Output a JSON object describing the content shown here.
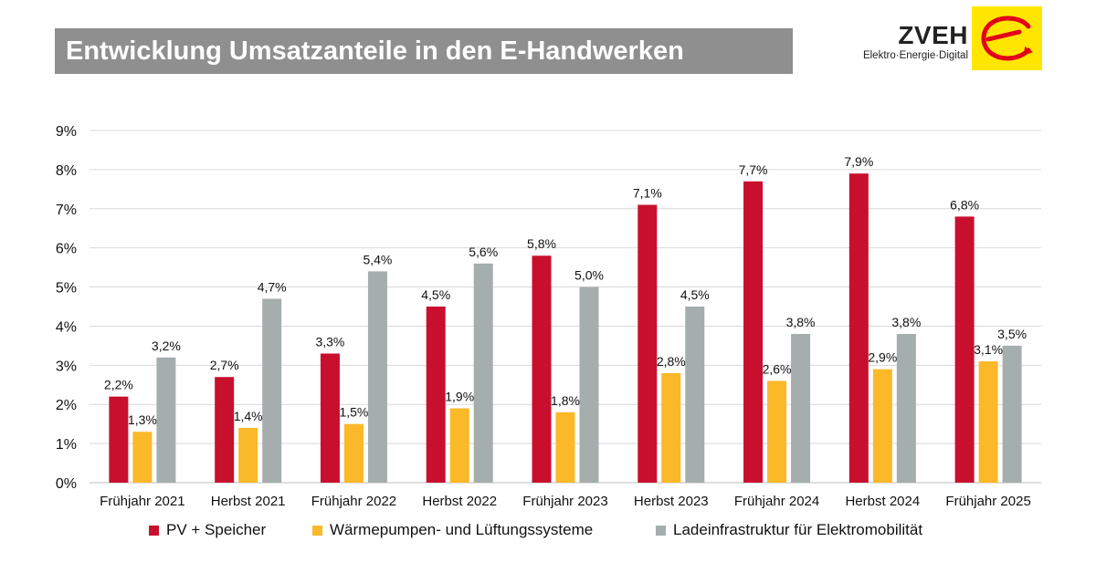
{
  "header": {
    "title": "Entwicklung Umsatzanteile in den E-Handwerken"
  },
  "logo": {
    "name": "ZVEH",
    "tagline": "Elektro·Energie·Digital",
    "mark_color": "#ffe600",
    "mark_icon": "e-swoosh-logo-icon",
    "mark_stroke_color": "#e2001a"
  },
  "chart_data": {
    "type": "bar",
    "title": "Entwicklung Umsatzanteile in den E-Handwerken",
    "xlabel": "",
    "ylabel": "",
    "categories": [
      "Frühjahr 2021",
      "Herbst 2021",
      "Frühjahr 2022",
      "Herbst 2022",
      "Frühjahr 2023",
      "Herbst 2023",
      "Frühjahr 2024",
      "Herbst 2024",
      "Frühjahr 2025"
    ],
    "series": [
      {
        "name": "PV + Speicher",
        "color": "#c8102e",
        "values": [
          2.2,
          2.7,
          3.3,
          4.5,
          5.8,
          7.1,
          7.7,
          7.9,
          6.8
        ],
        "labels": [
          "2,2%",
          "2,7%",
          "3,3%",
          "4,5%",
          "5,8%",
          "7,1%",
          "7,7%",
          "7,9%",
          "6,8%"
        ]
      },
      {
        "name": "Wärmepumpen- und Lüftungssysteme",
        "color": "#fbb829",
        "values": [
          1.3,
          1.4,
          1.5,
          1.9,
          1.8,
          2.8,
          2.6,
          2.9,
          3.1
        ],
        "labels": [
          "1,3%",
          "1,4%",
          "1,5%",
          "1,9%",
          "1,8%",
          "2,8%",
          "2,6%",
          "2,9%",
          "3,1%"
        ]
      },
      {
        "name": "Ladeinfrastruktur für Elektromobilität",
        "color": "#a5adad",
        "values": [
          3.2,
          4.7,
          5.4,
          5.6,
          5.0,
          4.5,
          3.8,
          3.8,
          3.5
        ],
        "labels": [
          "3,2%",
          "4,7%",
          "5,4%",
          "5,6%",
          "5,0%",
          "4,5%",
          "3,8%",
          "3,8%",
          "3,5%"
        ]
      }
    ],
    "ylim": [
      0,
      9
    ],
    "yticks": [
      0,
      1,
      2,
      3,
      4,
      5,
      6,
      7,
      8,
      9
    ],
    "ytick_labels": [
      "0%",
      "1%",
      "2%",
      "3%",
      "4%",
      "5%",
      "6%",
      "7%",
      "8%",
      "9%"
    ],
    "grid": true,
    "legend_position": "bottom",
    "gridline_color": "#d9d9d9"
  }
}
